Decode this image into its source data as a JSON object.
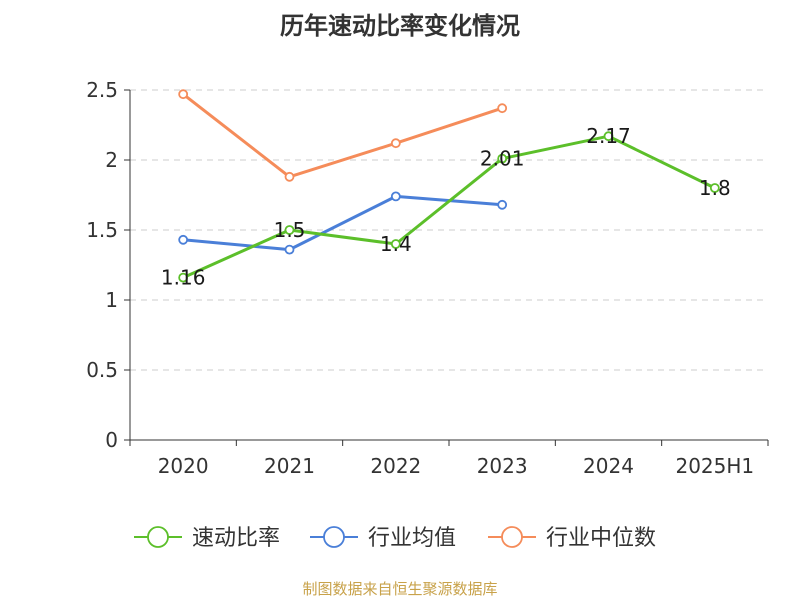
{
  "chart_data": {
    "type": "line",
    "title": "历年速动比率变化情况",
    "categories": [
      "2020",
      "2021",
      "2022",
      "2023",
      "2024",
      "2025H1"
    ],
    "ylim": [
      0,
      2.5
    ],
    "yticks": [
      "0",
      "0.5",
      "1",
      "1.5",
      "2",
      "2.5"
    ],
    "grid": true,
    "legend_position": "bottom",
    "series": [
      {
        "name": "速动比率",
        "color": "#5cbf2a",
        "values": [
          1.16,
          1.5,
          1.4,
          2.01,
          2.17,
          1.8
        ],
        "labels": [
          "1.16",
          "1.5",
          "1.4",
          "2.01",
          "2.17",
          "1.8"
        ]
      },
      {
        "name": "行业均值",
        "color": "#4a7fd8",
        "values": [
          1.43,
          1.36,
          1.74,
          1.68,
          null,
          null
        ]
      },
      {
        "name": "行业中位数",
        "color": "#f58c5a",
        "values": [
          2.47,
          1.88,
          2.12,
          2.37,
          null,
          null
        ]
      }
    ]
  },
  "source": "制图数据来自恒生聚源数据库"
}
